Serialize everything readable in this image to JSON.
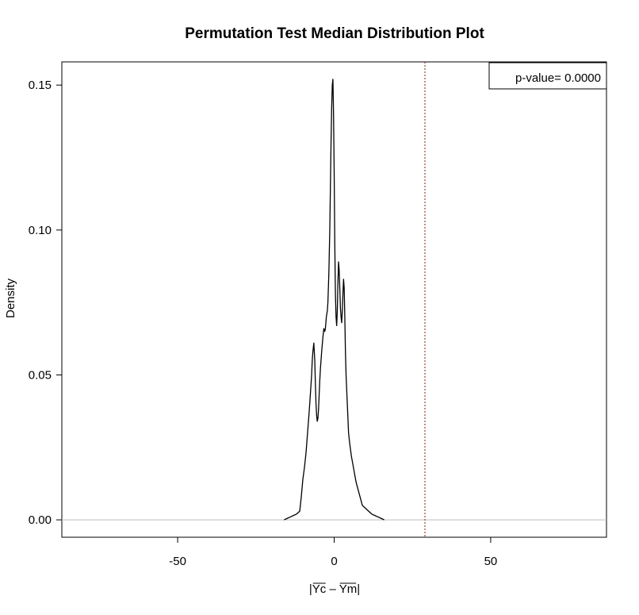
{
  "chart_data": {
    "type": "line",
    "title": "Permutation Test Median Distribution Plot",
    "xlabel": "|Yc – Ym|",
    "xlabel_parts": {
      "left_bar": "|",
      "a": "Yc",
      "sep": " – ",
      "b": "Ym",
      "right_bar": "|"
    },
    "ylabel": "Density",
    "xlim": [
      -87,
      87
    ],
    "ylim": [
      -0.006,
      0.158
    ],
    "x_ticks": [
      -50,
      0,
      50
    ],
    "x_tick_labels": [
      "-50",
      "0",
      "50"
    ],
    "y_ticks": [
      0.0,
      0.05,
      0.1,
      0.15
    ],
    "y_tick_labels": [
      "0.00",
      "0.05",
      "0.10",
      "0.15"
    ],
    "grid": false,
    "reference_line": {
      "axis": "x",
      "value": 29,
      "color": "#8b1a1a",
      "style": "dotted"
    },
    "zero_line": {
      "axis": "y",
      "value": 0,
      "color": "#bebebe"
    },
    "legend": {
      "position": "top-right",
      "text": "p-value= 0.0000"
    },
    "series": [
      {
        "color": "#000000",
        "x": [
          -16,
          -15,
          -14,
          -13,
          -12,
          -11,
          -10.5,
          -10,
          -9.5,
          -9,
          -8.5,
          -8,
          -7.5,
          -7.2,
          -7,
          -6.8,
          -6.5,
          -6.2,
          -6,
          -5.8,
          -5.6,
          -5.4,
          -5.2,
          -5,
          -4.8,
          -4.6,
          -4.4,
          -4,
          -3.6,
          -3.3,
          -3,
          -2.8,
          -2.5,
          -2.2,
          -2,
          -1.7,
          -1.4,
          -1.2,
          -1,
          -0.8,
          -0.6,
          -0.4,
          -0.2,
          0,
          0.2,
          0.4,
          0.6,
          0.8,
          1,
          1.2,
          1.4,
          1.6,
          1.8,
          2,
          2.2,
          2.4,
          2.6,
          2.8,
          3,
          3.2,
          3.4,
          3.6,
          3.8,
          4,
          4.2,
          4.4,
          4.6,
          5,
          5.5,
          6,
          6.5,
          7,
          7.5,
          8,
          8.5,
          9,
          10,
          11,
          12,
          13,
          14,
          15,
          16
        ],
        "y": [
          0.0,
          0.0005,
          0.001,
          0.0015,
          0.002,
          0.003,
          0.008,
          0.014,
          0.018,
          0.023,
          0.03,
          0.037,
          0.045,
          0.05,
          0.055,
          0.058,
          0.061,
          0.055,
          0.047,
          0.04,
          0.036,
          0.034,
          0.035,
          0.038,
          0.043,
          0.048,
          0.052,
          0.058,
          0.063,
          0.066,
          0.065,
          0.066,
          0.07,
          0.072,
          0.075,
          0.085,
          0.1,
          0.115,
          0.13,
          0.142,
          0.15,
          0.152,
          0.14,
          0.12,
          0.095,
          0.078,
          0.07,
          0.067,
          0.072,
          0.082,
          0.089,
          0.086,
          0.08,
          0.073,
          0.07,
          0.068,
          0.072,
          0.078,
          0.083,
          0.08,
          0.07,
          0.058,
          0.05,
          0.045,
          0.04,
          0.035,
          0.03,
          0.026,
          0.022,
          0.019,
          0.016,
          0.013,
          0.011,
          0.009,
          0.007,
          0.005,
          0.004,
          0.003,
          0.002,
          0.0015,
          0.001,
          0.0005,
          0.0
        ]
      }
    ]
  }
}
